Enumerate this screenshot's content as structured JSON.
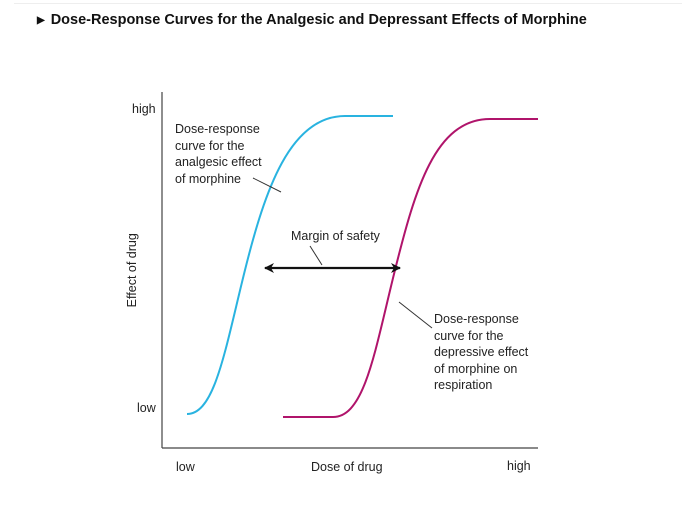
{
  "title": "Dose-Response Curves for the Analgesic and Depressant Effects of Morphine",
  "title_icon": "triangle-right-icon",
  "y_axis": {
    "label": "Effect of drug",
    "high": "high",
    "low": "low"
  },
  "x_axis": {
    "label": "Dose of drug",
    "low": "low",
    "high": "high"
  },
  "annotations": {
    "analgesic": [
      "Dose-response",
      "curve for the",
      "analgesic effect",
      "of morphine"
    ],
    "margin": "Margin of safety",
    "depressive": [
      "Dose-response",
      "curve for the",
      "depressive effect",
      "of morphine on",
      "respiration"
    ]
  },
  "colors": {
    "analgesic_curve": "#29b3e0",
    "depressive_curve": "#b0146b",
    "axis": "#333333"
  }
}
